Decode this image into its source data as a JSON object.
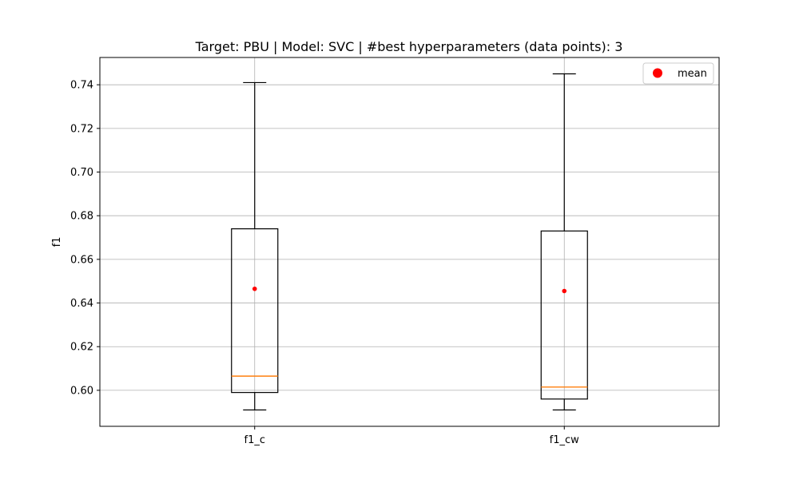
{
  "chart_data": {
    "type": "box",
    "title": "Target: PBU | Model: SVC | #best hyperparameters (data points): 3",
    "xlabel": "",
    "ylabel": "f1",
    "ylim": [
      0.5835,
      0.7525
    ],
    "yticks": [
      "0.60",
      "0.62",
      "0.64",
      "0.66",
      "0.68",
      "0.70",
      "0.72",
      "0.74"
    ],
    "grid": true,
    "legend": {
      "placement": "top-right",
      "entries": [
        {
          "label": "mean",
          "marker": "circle",
          "color": "#ff0000"
        }
      ]
    },
    "categories": [
      "f1_c",
      "f1_cw"
    ],
    "boxes": [
      {
        "category": "f1_c",
        "whisker_low": 0.591,
        "q1": 0.599,
        "median": 0.6065,
        "q3": 0.674,
        "whisker_high": 0.741,
        "mean": 0.6465
      },
      {
        "category": "f1_cw",
        "whisker_low": 0.591,
        "q1": 0.596,
        "median": 0.6015,
        "q3": 0.673,
        "whisker_high": 0.745,
        "mean": 0.6455
      }
    ],
    "colors": {
      "box": "#000000",
      "median": "#ff7f0e",
      "mean": "#ff0000",
      "grid": "#b0b0b0"
    }
  }
}
